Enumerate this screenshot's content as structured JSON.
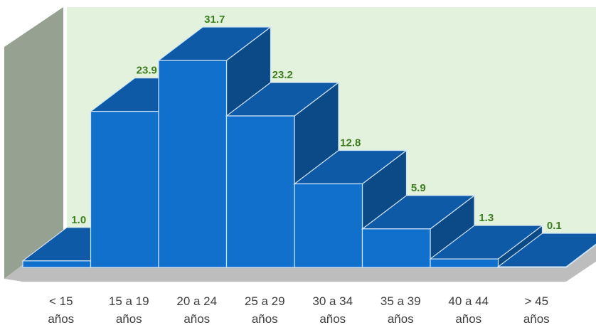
{
  "chart_data": {
    "type": "bar",
    "style": "3d-histogram",
    "categories": [
      [
        "< 15",
        "años"
      ],
      [
        "15 a 19",
        "años"
      ],
      [
        "20 a 24",
        "años"
      ],
      [
        "25 a 29",
        "años"
      ],
      [
        "30 a 34",
        "años"
      ],
      [
        "35 a 39",
        "años"
      ],
      [
        "40 a 44",
        "años"
      ],
      [
        "> 45",
        "años"
      ]
    ],
    "values": [
      1.0,
      23.9,
      31.7,
      23.2,
      12.8,
      5.9,
      1.3,
      0.1
    ],
    "value_labels": [
      "1.0",
      "23.9",
      "31.7",
      "23.2",
      "12.8",
      "5.9",
      "1.3",
      "0.1"
    ],
    "title": "",
    "xlabel": "",
    "ylabel": "",
    "ylim": [
      0,
      35
    ],
    "grid": false,
    "legend": "none",
    "colors": {
      "bar_front": "#1170cc",
      "bar_top": "#0f5aa6",
      "bar_side": "#0b4a86",
      "bar_edge": "#cfe3f7",
      "back_wall": "#e3f2dd",
      "side_wall": "#97a191",
      "floor": "#bdbdbd",
      "value_label": "#3e7d1f",
      "tick_label": "#404040"
    }
  }
}
